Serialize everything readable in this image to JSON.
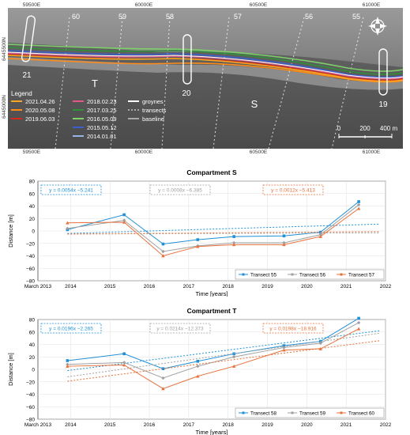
{
  "map": {
    "grid_top": [
      "59500E",
      "60000E",
      "60500E",
      "61000E"
    ],
    "grid_bottom": [
      "59500E",
      "60000E",
      "60500E",
      "61000E"
    ],
    "grid_left": [
      "6445500N",
      "6445000N"
    ],
    "transect_numbers": [
      "60",
      "59",
      "58",
      "57",
      "56",
      "55"
    ],
    "groyne_numbers": [
      "21",
      "20",
      "19"
    ],
    "compartment_labels": [
      "T",
      "S"
    ],
    "legend_title": "Legend",
    "legend_dates": [
      {
        "label": "2021.04.26",
        "color": "#f5a623"
      },
      {
        "label": "2020.05.08",
        "color": "#ff8c1a"
      },
      {
        "label": "2019.06.03",
        "color": "#d42a1a"
      },
      {
        "label": "2018.02.23",
        "color": "#e05a8a"
      },
      {
        "label": "2017.03.25",
        "color": "#2f8f3a"
      },
      {
        "label": "2016.05.09",
        "color": "#7ed06a"
      },
      {
        "label": "2015.05.12",
        "color": "#3a5fcd"
      },
      {
        "label": "2014.01.01",
        "color": "#9ab4e8"
      }
    ],
    "legend_symbols": [
      {
        "label": "groynes"
      },
      {
        "label": "transects"
      },
      {
        "label": "baseline"
      }
    ],
    "scale_labels": [
      "0",
      "200",
      "400 m"
    ],
    "compass_icon": "north-arrow-compass-icon"
  },
  "chart_data": [
    {
      "type": "line",
      "title": "Compartment S",
      "xlabel": "Time [years]",
      "ylabel": "Distance [m]",
      "x_ticks": [
        "March 2013",
        "2014",
        "2015",
        "2016",
        "2017",
        "2018",
        "2019",
        "2020",
        "2021",
        "2022"
      ],
      "y_ticks": [
        80,
        60,
        40,
        20,
        0,
        -20,
        -40,
        -60,
        -80
      ],
      "ylim": [
        -80,
        80
      ],
      "xlim": [
        2013.17,
        2022.0
      ],
      "grid": true,
      "legend_placement": "bottom-right",
      "x": [
        2013.92,
        2015.36,
        2016.35,
        2017.23,
        2018.15,
        2019.42,
        2020.35,
        2021.32
      ],
      "series": [
        {
          "name": "Transect 55",
          "color": "#1f8fd6",
          "marker": "square",
          "values": [
            2,
            26,
            -21,
            -14,
            -9,
            -8,
            -2,
            47
          ],
          "trend": {
            "label": "y = 0.0054x −5.241",
            "start": -4,
            "end": 11
          }
        },
        {
          "name": "Transect 56",
          "color": "#a0a0a0",
          "marker": "diamond",
          "values": [
            4,
            17,
            -33,
            -24,
            -19,
            -19,
            -6,
            42
          ],
          "trend": {
            "label": "y = 0.0008x −6.385",
            "start": -5,
            "end": -3
          }
        },
        {
          "name": "Transect 57",
          "color": "#e8703a",
          "marker": "triangle",
          "values": [
            13,
            14,
            -40,
            -25,
            -22,
            -22,
            -9,
            36
          ],
          "trend": {
            "label": "y = 0.0012x −5.413",
            "start": -5,
            "end": -1
          }
        }
      ]
    },
    {
      "type": "line",
      "title": "Compartment T",
      "xlabel": "Time [years]",
      "ylabel": "Distance [m]",
      "x_ticks": [
        "March 2013",
        "2014",
        "2015",
        "2016",
        "2017",
        "2018",
        "2019",
        "2020",
        "2021",
        "2022"
      ],
      "y_ticks": [
        80,
        60,
        40,
        20,
        0,
        -20,
        -40,
        -60,
        -80
      ],
      "ylim": [
        -80,
        80
      ],
      "xlim": [
        2013.17,
        2022.0
      ],
      "grid": true,
      "legend_placement": "bottom-right",
      "x": [
        2013.92,
        2015.36,
        2016.35,
        2017.23,
        2018.15,
        2019.42,
        2020.35,
        2021.32
      ],
      "series": [
        {
          "name": "Transect 58",
          "color": "#1f8fd6",
          "marker": "square",
          "values": [
            14,
            25,
            1,
            13,
            25,
            38,
            45,
            82
          ],
          "trend": {
            "label": "y = 0.0196x −2.265",
            "start": -2,
            "end": 62
          }
        },
        {
          "name": "Transect 59",
          "color": "#a0a0a0",
          "marker": "diamond",
          "values": [
            8,
            11,
            -14,
            5,
            20,
            35,
            42,
            75
          ],
          "trend": {
            "label": "y = 0.0214x −12.373",
            "start": -12,
            "end": 58
          }
        },
        {
          "name": "Transect 60",
          "color": "#e8703a",
          "marker": "triangle",
          "values": [
            5,
            7,
            -31,
            -11,
            5,
            31,
            33,
            65
          ],
          "trend": {
            "label": "y = 0.0198x −18.916",
            "start": -19,
            "end": 46
          }
        }
      ]
    }
  ]
}
